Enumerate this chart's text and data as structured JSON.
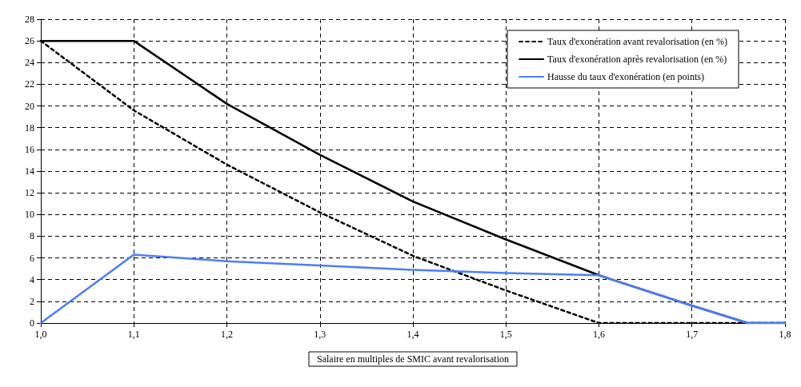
{
  "chart_data": {
    "type": "line",
    "xlabel": "Salaire en multiples de SMIC avant revalorisation",
    "x": [
      1.0,
      1.1,
      1.2,
      1.3,
      1.4,
      1.5,
      1.6,
      1.7,
      1.76,
      1.8
    ],
    "series": [
      {
        "name": "Taux d'exonération avant revalorisation (en %)",
        "color": "#000000",
        "line_style": "dotted",
        "values": [
          26,
          19.6,
          14.6,
          10.2,
          6.2,
          3.0,
          0,
          0,
          0,
          0
        ]
      },
      {
        "name": "Taux d'exonération après revalorisation (en %)",
        "color": "#000000",
        "line_style": "solid",
        "values": [
          26,
          26,
          20.2,
          15.5,
          11.2,
          7.7,
          4.4,
          1.6,
          0,
          0
        ]
      },
      {
        "name": "Hausse du taux d'exonération (en points)",
        "color": "#4d7cfe",
        "line_style": "solid",
        "values": [
          0,
          6.3,
          5.7,
          5.3,
          4.9,
          4.6,
          4.4,
          1.6,
          0,
          0
        ]
      }
    ],
    "xlim": [
      1.0,
      1.8
    ],
    "xticks": [
      {
        "value": 1.0,
        "label": "1,0"
      },
      {
        "value": 1.1,
        "label": "1,1"
      },
      {
        "value": 1.2,
        "label": "1,2"
      },
      {
        "value": 1.3,
        "label": "1,3"
      },
      {
        "value": 1.4,
        "label": "1,4"
      },
      {
        "value": 1.5,
        "label": "1,5"
      },
      {
        "value": 1.6,
        "label": "1,6"
      },
      {
        "value": 1.7,
        "label": "1,7"
      },
      {
        "value": 1.8,
        "label": "1,8"
      }
    ],
    "ylim": [
      0,
      28
    ],
    "yticks": [
      0,
      2,
      4,
      6,
      8,
      10,
      12,
      14,
      16,
      18,
      20,
      22,
      24,
      26,
      28
    ],
    "grid": true,
    "legend": "top right",
    "marker": "none"
  }
}
